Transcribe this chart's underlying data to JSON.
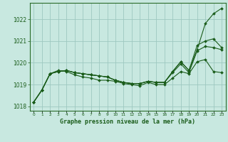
{
  "title": "Graphe pression niveau de la mer (hPa)",
  "xlabel_hours": [
    0,
    1,
    2,
    3,
    4,
    5,
    6,
    7,
    8,
    9,
    10,
    11,
    12,
    13,
    14,
    15,
    16,
    17,
    18,
    19,
    20,
    21,
    22,
    23
  ],
  "ylim": [
    1017.8,
    1022.75
  ],
  "yticks": [
    1018,
    1019,
    1020,
    1021,
    1022
  ],
  "bg_color": "#c8e8e0",
  "grid_color": "#9ec8c0",
  "line_color": "#1a5c1a",
  "marker_color": "#1a5c1a",
  "lines": [
    [
      1018.2,
      1018.75,
      1019.5,
      1019.6,
      1019.65,
      1019.55,
      1019.5,
      1019.45,
      1019.4,
      1019.35,
      1019.2,
      1019.1,
      1019.05,
      1019.05,
      1019.15,
      1019.1,
      1019.1,
      1019.6,
      1020.05,
      1019.65,
      1020.6,
      1021.8,
      1022.25,
      1022.5
    ],
    [
      1018.2,
      1018.75,
      1019.5,
      1019.6,
      1019.65,
      1019.55,
      1019.5,
      1019.45,
      1019.4,
      1019.35,
      1019.2,
      1019.1,
      1019.05,
      1019.05,
      1019.15,
      1019.1,
      1019.1,
      1019.6,
      1020.05,
      1019.65,
      1020.8,
      1021.0,
      1021.1,
      1020.7
    ],
    [
      1018.2,
      1018.75,
      1019.5,
      1019.6,
      1019.65,
      1019.55,
      1019.5,
      1019.45,
      1019.4,
      1019.35,
      1019.2,
      1019.1,
      1019.05,
      1019.05,
      1019.15,
      1019.1,
      1019.1,
      1019.55,
      1019.95,
      1019.55,
      1020.55,
      1020.75,
      1020.7,
      1020.6
    ],
    [
      1018.2,
      1018.75,
      1019.5,
      1019.65,
      1019.6,
      1019.45,
      1019.35,
      1019.3,
      1019.2,
      1019.2,
      1019.15,
      1019.05,
      1019.0,
      1018.95,
      1019.1,
      1019.0,
      1019.0,
      1019.3,
      1019.6,
      1019.5,
      1020.05,
      1020.15,
      1019.6,
      1019.55
    ]
  ]
}
